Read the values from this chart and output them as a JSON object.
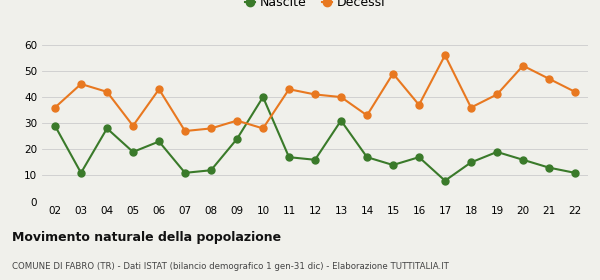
{
  "years": [
    "02",
    "03",
    "04",
    "05",
    "06",
    "07",
    "08",
    "09",
    "10",
    "11",
    "12",
    "13",
    "14",
    "15",
    "16",
    "17",
    "18",
    "19",
    "20",
    "21",
    "22"
  ],
  "nascite": [
    29,
    11,
    28,
    19,
    23,
    11,
    12,
    24,
    40,
    17,
    16,
    31,
    17,
    14,
    17,
    8,
    15,
    19,
    16,
    13,
    11
  ],
  "decessi": [
    36,
    45,
    42,
    29,
    43,
    27,
    28,
    31,
    28,
    43,
    41,
    40,
    33,
    49,
    37,
    56,
    36,
    41,
    52,
    47,
    42
  ],
  "nascite_color": "#3a7a2a",
  "decessi_color": "#e87820",
  "bg_color": "#f0f0eb",
  "title": "Movimento naturale della popolazione",
  "subtitle": "COMUNE DI FABRO (TR) - Dati ISTAT (bilancio demografico 1 gen-31 dic) - Elaborazione TUTTITALIA.IT",
  "ylim": [
    0,
    60
  ],
  "yticks": [
    0,
    10,
    20,
    30,
    40,
    50,
    60
  ],
  "legend_nascite": "Nascite",
  "legend_decessi": "Decessi",
  "marker_size": 5,
  "linewidth": 1.5
}
